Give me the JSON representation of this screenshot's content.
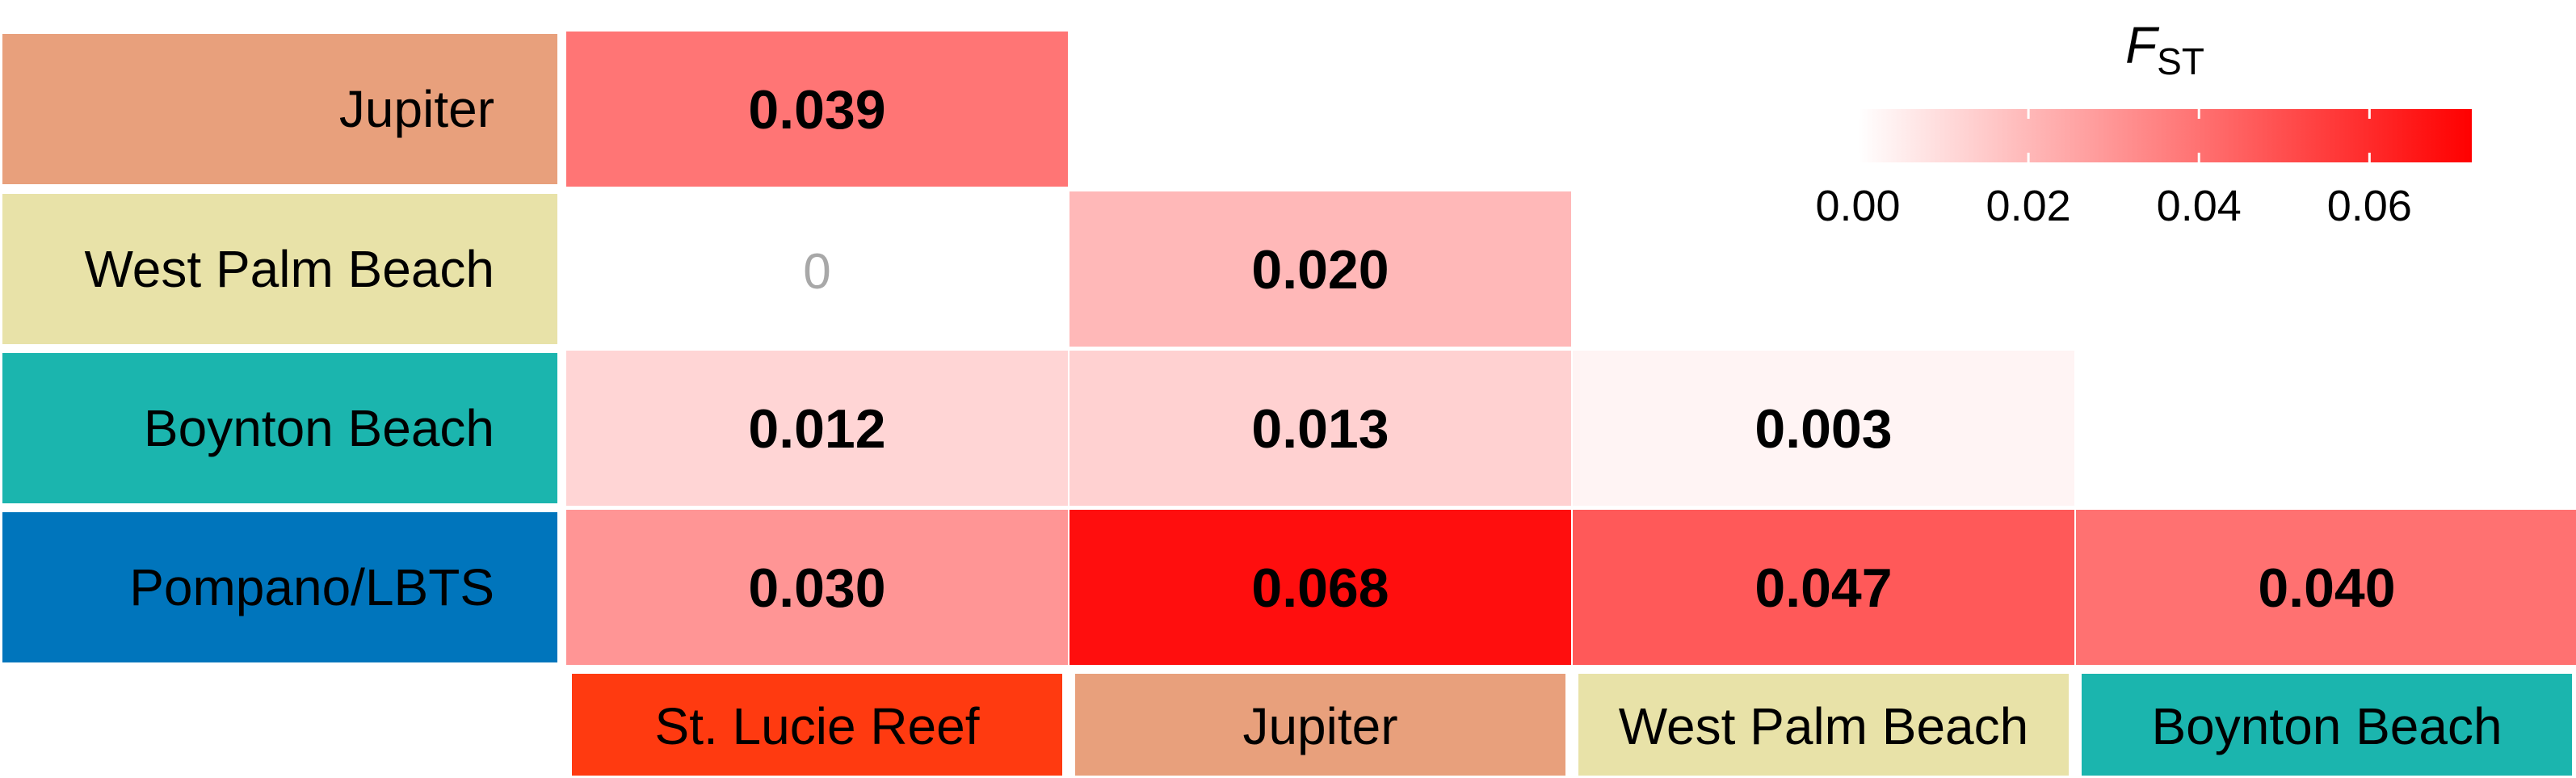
{
  "chart_data": {
    "type": "heatmap",
    "title": "",
    "xlabel": "",
    "ylabel": "",
    "row_labels": [
      {
        "label": "Jupiter",
        "color": "#E8A07C"
      },
      {
        "label": "West Palm Beach",
        "color": "#E8E2A8"
      },
      {
        "label": "Boynton Beach",
        "color": "#1BB5AE"
      },
      {
        "label": "Pompano/LBTS",
        "color": "#0075BC"
      }
    ],
    "column_labels": [
      {
        "label": "St. Lucie Reef",
        "color": "#FF3A10"
      },
      {
        "label": "Jupiter",
        "color": "#E8A07C"
      },
      {
        "label": "West Palm Beach",
        "color": "#E8E2A8"
      },
      {
        "label": "Boynton Beach",
        "color": "#1BB5AE"
      }
    ],
    "cells": [
      {
        "row": 0,
        "col": 0,
        "value": 0.039,
        "label": "0.039"
      },
      {
        "row": 1,
        "col": 0,
        "value": 0,
        "label": "0",
        "muted": true
      },
      {
        "row": 1,
        "col": 1,
        "value": 0.02,
        "label": "0.020"
      },
      {
        "row": 2,
        "col": 0,
        "value": 0.012,
        "label": "0.012"
      },
      {
        "row": 2,
        "col": 1,
        "value": 0.013,
        "label": "0.013"
      },
      {
        "row": 2,
        "col": 2,
        "value": 0.003,
        "label": "0.003"
      },
      {
        "row": 3,
        "col": 0,
        "value": 0.03,
        "label": "0.030"
      },
      {
        "row": 3,
        "col": 1,
        "value": 0.068,
        "label": "0.068"
      },
      {
        "row": 3,
        "col": 2,
        "value": 0.047,
        "label": "0.047"
      },
      {
        "row": 3,
        "col": 3,
        "value": 0.04,
        "label": "0.040"
      }
    ],
    "legend": {
      "title_main": "F",
      "title_sub": "ST",
      "range": [
        0,
        0.072
      ],
      "ticks": [
        0.0,
        0.02,
        0.04,
        0.06
      ],
      "tick_labels": [
        "0.00",
        "0.02",
        "0.04",
        "0.06"
      ],
      "color_low": "#FFFFFF",
      "color_high": "#FF0000",
      "placement": "top-right"
    }
  }
}
